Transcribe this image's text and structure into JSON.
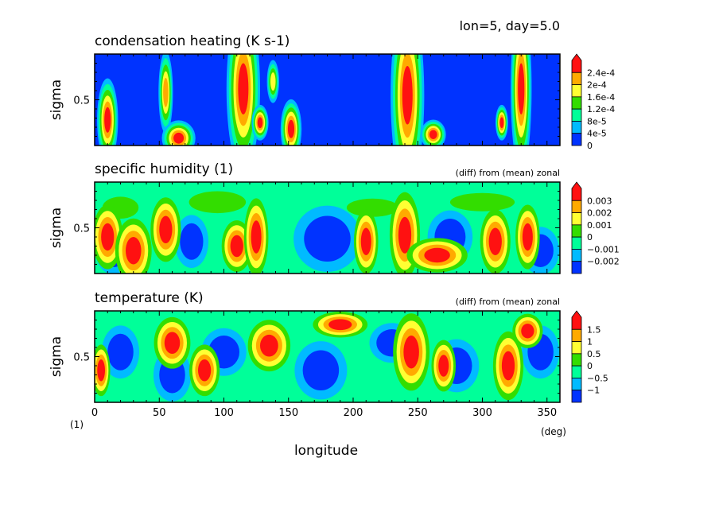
{
  "header": {
    "info": "lon=5, day=5.0"
  },
  "footer": {
    "corner_unit": "(1)",
    "x_unit": "(deg)",
    "x_label": "longitude"
  },
  "palette": [
    "#0033ff",
    "#00bbff",
    "#00ff99",
    "#33dd00",
    "#ffff33",
    "#ffaa00",
    "#ff1111"
  ],
  "chart_data": [
    {
      "type": "heatmap",
      "title": "condensation heating (K s-1)",
      "note": "",
      "ylabel": "sigma",
      "xlim": [
        0,
        360
      ],
      "x_ticks": [
        0,
        50,
        100,
        150,
        200,
        250,
        300,
        350
      ],
      "y_ticks": [
        0.5
      ],
      "colorbar_labels": [
        "2.4e-4",
        "2e-4",
        "1.6e-4",
        "1.2e-4",
        "8e-5",
        "4e-5",
        "0"
      ],
      "colorbar_colors": [
        "#ff1111",
        "#ffaa00",
        "#ffff33",
        "#33dd00",
        "#00ff99",
        "#00bbff",
        "#0033ff"
      ],
      "background": "#0033ff",
      "features": [
        {
          "lon": 10,
          "sigma": 0.28,
          "w": 2.5,
          "h": 0.14,
          "level": 6
        },
        {
          "lon": 55,
          "sigma": 0.58,
          "w": 2,
          "h": 0.16,
          "level": 5
        },
        {
          "lon": 65,
          "sigma": 0.08,
          "w": 4,
          "h": 0.06,
          "level": 6
        },
        {
          "lon": 115,
          "sigma": 0.62,
          "w": 4,
          "h": 0.28,
          "level": 6
        },
        {
          "lon": 128,
          "sigma": 0.25,
          "w": 2,
          "h": 0.06,
          "level": 6
        },
        {
          "lon": 138,
          "sigma": 0.7,
          "w": 2,
          "h": 0.1,
          "level": 4
        },
        {
          "lon": 152,
          "sigma": 0.18,
          "w": 2.5,
          "h": 0.1,
          "level": 6
        },
        {
          "lon": 242,
          "sigma": 0.55,
          "w": 4,
          "h": 0.32,
          "level": 6
        },
        {
          "lon": 262,
          "sigma": 0.12,
          "w": 3,
          "h": 0.05,
          "level": 6
        },
        {
          "lon": 315,
          "sigma": 0.25,
          "w": 1.5,
          "h": 0.06,
          "level": 6
        },
        {
          "lon": 330,
          "sigma": 0.62,
          "w": 2.5,
          "h": 0.28,
          "level": 6
        }
      ]
    },
    {
      "type": "heatmap",
      "title": "specific humidity (1)",
      "note": "(diff) from (mean) zonal",
      "ylabel": "sigma",
      "xlim": [
        0,
        360
      ],
      "x_ticks": [
        0,
        50,
        100,
        150,
        200,
        250,
        300,
        350
      ],
      "y_ticks": [
        0.5
      ],
      "colorbar_labels": [
        "0.003",
        "0.002",
        "0.001",
        "0",
        "−0.001",
        "−0.002"
      ],
      "colorbar_colors": [
        "#ff1111",
        "#ffaa00",
        "#ffff33",
        "#33dd00",
        "#00ff99",
        "#00bbff",
        "#0033ff"
      ],
      "background": "#00ff99",
      "features": [
        {
          "lon": 20,
          "sigma": 0.72,
          "w": 14,
          "h": 0.12,
          "level": 3
        },
        {
          "lon": 95,
          "sigma": 0.78,
          "w": 22,
          "h": 0.12,
          "level": 3
        },
        {
          "lon": 165,
          "sigma": 0.75,
          "w": 25,
          "h": 0.12,
          "level": 2
        },
        {
          "lon": 215,
          "sigma": 0.72,
          "w": 20,
          "h": 0.1,
          "level": 3
        },
        {
          "lon": 300,
          "sigma": 0.78,
          "w": 25,
          "h": 0.1,
          "level": 3
        },
        {
          "lon": 15,
          "sigma": 0.25,
          "w": 10,
          "h": 0.18,
          "level": 0
        },
        {
          "lon": 75,
          "sigma": 0.35,
          "w": 9,
          "h": 0.2,
          "level": 0
        },
        {
          "lon": 180,
          "sigma": 0.38,
          "w": 18,
          "h": 0.25,
          "level": 0
        },
        {
          "lon": 275,
          "sigma": 0.4,
          "w": 12,
          "h": 0.2,
          "level": 0
        },
        {
          "lon": 345,
          "sigma": 0.25,
          "w": 10,
          "h": 0.18,
          "level": 0
        },
        {
          "lon": 10,
          "sigma": 0.4,
          "w": 5,
          "h": 0.15,
          "level": 6
        },
        {
          "lon": 30,
          "sigma": 0.25,
          "w": 6,
          "h": 0.15,
          "level": 6
        },
        {
          "lon": 55,
          "sigma": 0.48,
          "w": 5,
          "h": 0.15,
          "level": 6
        },
        {
          "lon": 110,
          "sigma": 0.3,
          "w": 5,
          "h": 0.12,
          "level": 6
        },
        {
          "lon": 125,
          "sigma": 0.4,
          "w": 4,
          "h": 0.18,
          "level": 6
        },
        {
          "lon": 210,
          "sigma": 0.35,
          "w": 4,
          "h": 0.15,
          "level": 6
        },
        {
          "lon": 240,
          "sigma": 0.42,
          "w": 5,
          "h": 0.2,
          "level": 6
        },
        {
          "lon": 265,
          "sigma": 0.2,
          "w": 10,
          "h": 0.08,
          "level": 6
        },
        {
          "lon": 310,
          "sigma": 0.35,
          "w": 5,
          "h": 0.15,
          "level": 6
        },
        {
          "lon": 335,
          "sigma": 0.4,
          "w": 4,
          "h": 0.15,
          "level": 6
        }
      ]
    },
    {
      "type": "heatmap",
      "title": "temperature (K)",
      "note": "(diff) from (mean) zonal",
      "ylabel": "sigma",
      "xlim": [
        0,
        360
      ],
      "x_ticks": [
        0,
        50,
        100,
        150,
        200,
        250,
        300,
        350
      ],
      "y_ticks": [
        0.5
      ],
      "colorbar_labels": [
        "1.5",
        "1",
        "0.5",
        "0",
        "−0.5",
        "−1"
      ],
      "colorbar_colors": [
        "#ff1111",
        "#ffaa00",
        "#ffff33",
        "#33dd00",
        "#00ff99",
        "#00bbff",
        "#0033ff"
      ],
      "background": "#00ff99",
      "features": [
        {
          "lon": 20,
          "sigma": 0.55,
          "w": 10,
          "h": 0.2,
          "level": 0
        },
        {
          "lon": 60,
          "sigma": 0.3,
          "w": 10,
          "h": 0.2,
          "level": 0
        },
        {
          "lon": 100,
          "sigma": 0.55,
          "w": 12,
          "h": 0.18,
          "level": 0
        },
        {
          "lon": 175,
          "sigma": 0.35,
          "w": 14,
          "h": 0.22,
          "level": 0
        },
        {
          "lon": 230,
          "sigma": 0.65,
          "w": 12,
          "h": 0.15,
          "level": 0
        },
        {
          "lon": 280,
          "sigma": 0.4,
          "w": 12,
          "h": 0.2,
          "level": 0
        },
        {
          "lon": 345,
          "sigma": 0.55,
          "w": 10,
          "h": 0.2,
          "level": 0
        },
        {
          "lon": 5,
          "sigma": 0.35,
          "w": 3,
          "h": 0.12,
          "level": 6
        },
        {
          "lon": 60,
          "sigma": 0.65,
          "w": 6,
          "h": 0.12,
          "level": 6
        },
        {
          "lon": 85,
          "sigma": 0.35,
          "w": 5,
          "h": 0.12,
          "level": 6
        },
        {
          "lon": 135,
          "sigma": 0.62,
          "w": 7,
          "h": 0.12,
          "level": 6
        },
        {
          "lon": 190,
          "sigma": 0.85,
          "w": 9,
          "h": 0.06,
          "level": 6
        },
        {
          "lon": 245,
          "sigma": 0.55,
          "w": 6,
          "h": 0.18,
          "level": 6
        },
        {
          "lon": 270,
          "sigma": 0.4,
          "w": 4,
          "h": 0.12,
          "level": 6
        },
        {
          "lon": 320,
          "sigma": 0.4,
          "w": 5,
          "h": 0.16,
          "level": 6
        },
        {
          "lon": 335,
          "sigma": 0.78,
          "w": 5,
          "h": 0.08,
          "level": 6
        }
      ]
    }
  ]
}
